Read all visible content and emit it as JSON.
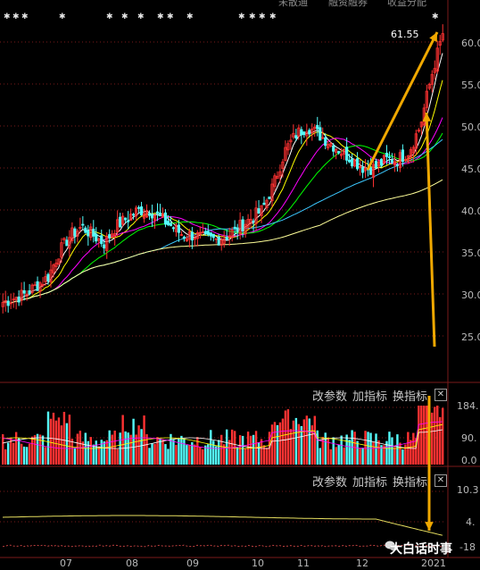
{
  "top_labels": [
    "未散通",
    "融资融券",
    "收益分配"
  ],
  "peak_label": "61.55",
  "price_axis": {
    "min": 20,
    "max": 63,
    "ticks": [
      "60.0",
      "55.0",
      "50.0",
      "45.0",
      "40.0",
      "35.0",
      "30.0",
      "25.0"
    ]
  },
  "volume_panel": {
    "tools": [
      "改参数",
      "加指标",
      "换指标"
    ],
    "ticks": [
      "184.",
      "90.",
      "0.0"
    ]
  },
  "indicator_panel": {
    "tools": [
      "改参数",
      "加指标",
      "换指标"
    ],
    "ticks": [
      "10.3",
      "4.",
      "-18"
    ]
  },
  "x_axis": [
    "07",
    "08",
    "09",
    "10",
    "11",
    "12",
    "2021"
  ],
  "watermark": "大白话时事",
  "colors": {
    "up": "#ff3232",
    "down": "#54fcfc",
    "ma5": "#ffffff",
    "ma10": "#ffff00",
    "ma20": "#ff00ff",
    "ma30": "#00ff00",
    "ma60": "#3cc8ff",
    "ma120": "#ffff99",
    "arrow": "#f0a800"
  },
  "chart_data": {
    "type": "candlestick",
    "price_range": [
      20,
      63
    ],
    "annotations": [
      "61.55"
    ],
    "close_trend": [
      29,
      29.5,
      30,
      31,
      32,
      35,
      37,
      38,
      37,
      36,
      38,
      39,
      40,
      40,
      39,
      38,
      37,
      37,
      36.5,
      36.5,
      37,
      38,
      39,
      40,
      43,
      47,
      49,
      50,
      49,
      48,
      47,
      46,
      45,
      45,
      46,
      46,
      47,
      50,
      56,
      61
    ]
  }
}
